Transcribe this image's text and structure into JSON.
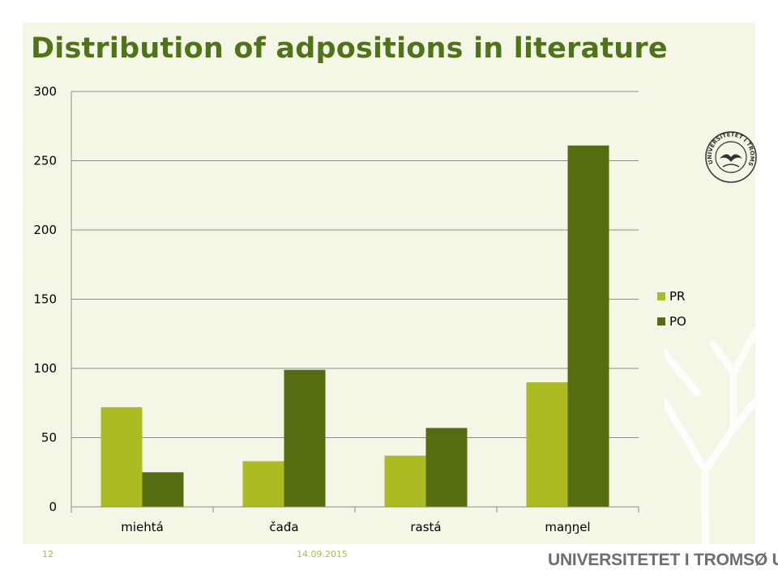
{
  "slide": {
    "title": "Distribution of adpositions in literature",
    "page_number": "12",
    "date": "14.09.2015",
    "brand": "UNIVERSITETET I TROMSØ UiT",
    "logo_text": "UNIVERSITETET I TROMSØ"
  },
  "colors": {
    "title": "#4f7417",
    "panel_background": "#f4f6e6",
    "footer_accent": "#a9bf3b",
    "brand_text": "#6d6e71"
  },
  "chart_data": {
    "type": "bar",
    "title": "",
    "xlabel": "",
    "ylabel": "",
    "categories": [
      "miehtá",
      "čađa",
      "rastá",
      "maŋŋel"
    ],
    "series": [
      {
        "name": "PR",
        "color": "#acbb22",
        "values": [
          72,
          33,
          37,
          90
        ]
      },
      {
        "name": "PO",
        "color": "#546d10",
        "values": [
          25,
          99,
          57,
          261
        ]
      }
    ],
    "ylim": [
      0,
      300
    ],
    "yticks": [
      0,
      50,
      100,
      150,
      200,
      250,
      300
    ],
    "grid": true,
    "legend_position": "right"
  }
}
